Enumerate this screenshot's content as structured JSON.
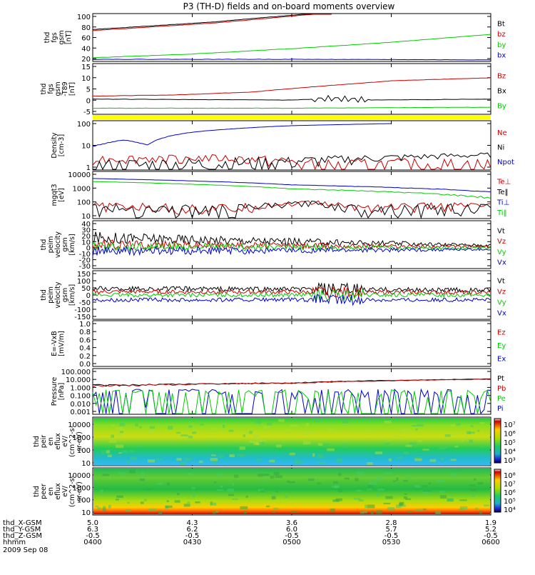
{
  "title": "P3 (TH-D) fields and on-board moments overview",
  "date": "2009 Sep 08",
  "chart_data": [
    {
      "type": "line",
      "ylabel": [
        "thd",
        "fgs",
        "gsm",
        "[nT]"
      ],
      "yticks": [
        "20",
        "40",
        "60",
        "80",
        "100"
      ],
      "ylim": [
        10,
        100
      ],
      "legend": [
        "Bt",
        "bz",
        "by",
        "bx"
      ],
      "series": [
        {
          "name": "Bt",
          "color": "#000000",
          "x": [
            0,
            0.3,
            0.5,
            0.59
          ],
          "y": [
            70,
            84,
            97,
            102
          ]
        },
        {
          "name": "bz",
          "color": "#cc0000",
          "x": [
            0,
            0.3,
            0.5,
            0.6
          ],
          "y": [
            68,
            82,
            95,
            102
          ]
        },
        {
          "name": "by",
          "color": "#00cc00",
          "x": [
            0,
            0.25,
            0.5,
            0.75,
            1
          ],
          "y": [
            17,
            24,
            34,
            46,
            61
          ]
        },
        {
          "name": "bx",
          "color": "#0000cc",
          "x": [
            0,
            0.5,
            1
          ],
          "y": [
            14,
            14,
            13
          ]
        }
      ]
    },
    {
      "type": "line",
      "ylabel": [
        "thd",
        "fgs",
        "gsm",
        "-T89",
        "[nT]"
      ],
      "yticks": [
        "15",
        "10",
        "5",
        "0",
        "-5"
      ],
      "ylim": [
        -8,
        17
      ],
      "legend": [
        "Bz",
        "Bx",
        "By"
      ],
      "series": [
        {
          "name": "Bz",
          "color": "#cc0000",
          "x": [
            0,
            0.2,
            0.4,
            0.55,
            0.75,
            1
          ],
          "y": [
            1,
            1.5,
            3,
            5.5,
            8.5,
            10
          ]
        },
        {
          "name": "Bx",
          "color": "#000000",
          "x": [
            0,
            0.5,
            0.6,
            0.7,
            1
          ],
          "y": [
            -0.5,
            -1,
            -0.2,
            -1,
            -0.5
          ]
        },
        {
          "name": "By",
          "color": "#00cc00",
          "x": [
            0,
            0.5,
            1
          ],
          "y": [
            -5,
            -5,
            -4.5
          ]
        }
      ]
    },
    {
      "type": "line",
      "ylabel": [
        "Density",
        "[cm-3]"
      ],
      "yticks": [
        "100",
        "10",
        "1"
      ],
      "ylim": [
        0.3,
        300
      ],
      "log": true,
      "legend": [
        "Ne",
        "Ni",
        "Npot"
      ],
      "series": [
        {
          "name": "Npot",
          "color": "#0000cc",
          "x": [
            0,
            0.08,
            0.14,
            0.25,
            0.5,
            0.75
          ],
          "y": [
            8,
            20,
            10,
            60,
            150,
            200
          ]
        },
        {
          "name": "Ne",
          "color": "#cc0000",
          "x": [
            0,
            0.3,
            0.45,
            0.55,
            0.6,
            0.7,
            1
          ],
          "y": [
            1.5,
            1.7,
            1.2,
            0.6,
            0.35,
            0.6,
            0.6
          ]
        },
        {
          "name": "Ni",
          "color": "#000000",
          "x": [
            0,
            0.5,
            1
          ],
          "y": [
            0.4,
            1,
            2.5
          ]
        }
      ]
    },
    {
      "type": "line",
      "ylabel": [
        "mgqt3",
        "[eV]"
      ],
      "yticks": [
        "10000",
        "1000",
        "100",
        "10"
      ],
      "ylim": [
        8,
        12000
      ],
      "log": true,
      "legend": [
        "Te⊥",
        "Te‖",
        "Ti⊥",
        "Ti‖"
      ],
      "series": [
        {
          "name": "Ti⊥",
          "color": "#0000cc",
          "x": [
            0,
            0.5,
            1
          ],
          "y": [
            4000,
            1500,
            500
          ]
        },
        {
          "name": "Ti‖",
          "color": "#00cc00",
          "x": [
            0,
            0.5,
            1
          ],
          "y": [
            2500,
            800,
            200
          ]
        },
        {
          "name": "Te⊥",
          "color": "#cc0000",
          "x": [
            0,
            0.2,
            0.35,
            0.55,
            0.65,
            1
          ],
          "y": [
            60,
            45,
            40,
            100,
            50,
            60
          ]
        },
        {
          "name": "Te‖",
          "color": "#000000",
          "x": [
            0,
            0.2,
            0.35,
            0.55,
            0.65,
            1
          ],
          "y": [
            45,
            35,
            30,
            90,
            40,
            45
          ]
        }
      ]
    },
    {
      "type": "line",
      "ylabel": [
        "thd",
        "peim",
        "velocity",
        "gsm",
        "[km/s]"
      ],
      "yticks": [
        "40",
        "30",
        "20",
        "10",
        "0",
        "-10",
        "-20",
        "-30"
      ],
      "ylim": [
        -30,
        40
      ],
      "legend": [
        "Vt",
        "Vz",
        "Vy",
        "Vx"
      ],
      "series": [
        {
          "name": "Vt",
          "color": "#000000",
          "x": [
            0,
            1
          ],
          "y": [
            15,
            4
          ]
        },
        {
          "name": "Vz",
          "color": "#cc0000",
          "x": [
            0,
            1
          ],
          "y": [
            5,
            2
          ]
        },
        {
          "name": "Vy",
          "color": "#00cc00",
          "x": [
            0,
            1
          ],
          "y": [
            2,
            0
          ]
        },
        {
          "name": "Vx",
          "color": "#0000cc",
          "x": [
            0,
            1
          ],
          "y": [
            -5,
            -2
          ]
        }
      ]
    },
    {
      "type": "line",
      "ylabel": [
        "thd",
        "peim",
        "velocity",
        "gsm",
        "[km/s]"
      ],
      "yticks": [
        "150",
        "100",
        "50",
        "0",
        "-50",
        "-100",
        "-150"
      ],
      "ylim": [
        -150,
        150
      ],
      "legend": [
        "Vt",
        "Vz",
        "Vy",
        "Vx"
      ],
      "series": [
        {
          "name": "Vt",
          "color": "#000000",
          "x": [
            0,
            1
          ],
          "y": [
            40,
            30
          ]
        },
        {
          "name": "Vz",
          "color": "#cc0000",
          "x": [
            0,
            1
          ],
          "y": [
            20,
            15
          ]
        },
        {
          "name": "Vy",
          "color": "#00cc00",
          "x": [
            0,
            1
          ],
          "y": [
            0,
            0
          ]
        },
        {
          "name": "Vx",
          "color": "#0000cc",
          "x": [
            0,
            1
          ],
          "y": [
            -30,
            -30
          ]
        }
      ]
    },
    {
      "type": "line",
      "ylabel": [
        "E=-VxB",
        "[mV/m]"
      ],
      "yticks": [
        "1.0",
        "0.8",
        "0.6",
        "0.4",
        "0.2",
        "0.0"
      ],
      "ylim": [
        0,
        1
      ],
      "legend": [
        "Ez",
        "Ey",
        "Ex"
      ],
      "series": []
    },
    {
      "type": "line",
      "ylabel": [
        "Pressure",
        "[nPa]"
      ],
      "yticks": [
        "100.000",
        "10.000",
        "1.000",
        "0.100",
        "0.010",
        "0.001"
      ],
      "ylim": [
        0.0008,
        200
      ],
      "log": true,
      "legend": [
        "Pt",
        "Pb",
        "Pe",
        "Pi"
      ],
      "series": [
        {
          "name": "Pt",
          "color": "#000000",
          "x": [
            0,
            0.5,
            1
          ],
          "y": [
            2,
            4,
            12
          ]
        },
        {
          "name": "Pb",
          "color": "#cc0000",
          "x": [
            0,
            0.5,
            1
          ],
          "y": [
            1.8,
            3.8,
            11
          ]
        },
        {
          "name": "Pe",
          "color": "#0000cc",
          "x": [
            0,
            0.5,
            1
          ],
          "y": [
            0.15,
            0.13,
            0.12
          ]
        },
        {
          "name": "Pi",
          "color": "#00cc00",
          "x": [
            0,
            0.5,
            1
          ],
          "y": [
            0.02,
            0.012,
            0.01
          ]
        }
      ]
    },
    {
      "type": "heatmap",
      "ylabel": [
        "thd",
        "peir",
        "en",
        "eflux",
        "eV/",
        "(cm^2-s-",
        "sr-eV)"
      ],
      "yticks": [
        "10000",
        "1000",
        "100",
        "10"
      ],
      "colorbar": [
        "10⁷",
        "10⁶",
        "10⁵",
        "10⁴",
        "10³"
      ]
    },
    {
      "type": "heatmap",
      "ylabel": [
        "thd",
        "peer",
        "en",
        "eflux",
        "eV/",
        "(cm^2-s-",
        "sr-eV)"
      ],
      "yticks": [
        "10000",
        "1000",
        "100",
        "10"
      ],
      "colorbar": [
        "10⁸",
        "10⁷",
        "10⁶",
        "10⁵",
        "10⁴"
      ]
    }
  ],
  "footer": {
    "rows": [
      {
        "label": "thd_X-GSM",
        "values": [
          "5.0",
          "4.3",
          "3.6",
          "2.8",
          "1.9"
        ]
      },
      {
        "label": "thd_Y-GSM",
        "values": [
          "6.3",
          "6.2",
          "6.0",
          "5.7",
          "5.2"
        ]
      },
      {
        "label": "thd_Z-GSM",
        "values": [
          "-0.5",
          "-0.5",
          "-0.5",
          "-0.5",
          "-0.5"
        ]
      },
      {
        "label": "hhmm",
        "values": [
          "0400",
          "0430",
          "0500",
          "0530",
          "0600"
        ]
      }
    ]
  },
  "colors": {
    "black": "#000000",
    "red": "#cc0000",
    "green": "#00cc00",
    "blue": "#0000cc",
    "yellow": "#ffff00"
  }
}
